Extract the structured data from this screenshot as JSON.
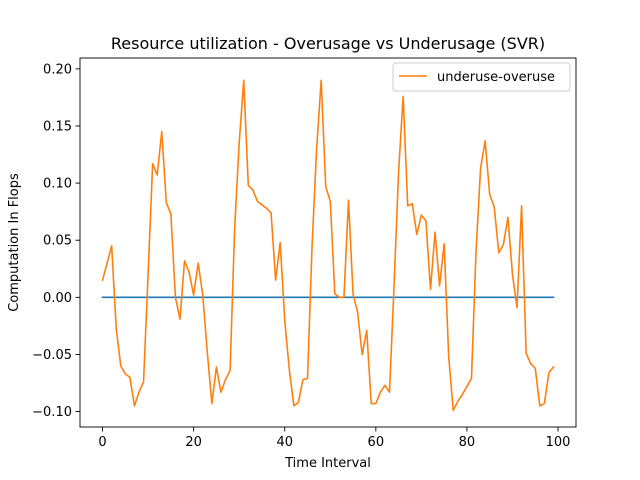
{
  "chart_data": {
    "type": "line",
    "title": "Resource utilization - Overusage vs Underusage (SVR)",
    "xlabel": "Time Interval",
    "ylabel": "Computation In Flops",
    "xlim": [
      -4.95,
      103.95
    ],
    "ylim": [
      -0.1135,
      0.2095
    ],
    "x_ticks": [
      0,
      20,
      40,
      60,
      80,
      100
    ],
    "y_ticks": [
      -0.1,
      -0.05,
      0.0,
      0.05,
      0.1,
      0.15,
      0.2
    ],
    "x_tick_labels": [
      "0",
      "20",
      "40",
      "60",
      "80",
      "100"
    ],
    "y_tick_labels": [
      "−0.10",
      "−0.05",
      "0.00",
      "0.05",
      "0.10",
      "0.15",
      "0.20"
    ],
    "grid": false,
    "legend_position": "top-right",
    "colors": {
      "series0": "#1f77b4",
      "series1": "#ff7f0e"
    },
    "series": [
      {
        "name": "",
        "x": [
          0,
          99
        ],
        "values": [
          0.0,
          0.0
        ]
      },
      {
        "name": "underuse-overuse",
        "x": [
          0,
          1,
          2,
          3,
          4,
          5,
          6,
          7,
          8,
          9,
          10,
          11,
          12,
          13,
          14,
          15,
          16,
          17,
          18,
          19,
          20,
          21,
          22,
          23,
          24,
          25,
          26,
          27,
          28,
          29,
          30,
          31,
          32,
          33,
          34,
          35,
          36,
          37,
          38,
          39,
          40,
          41,
          42,
          43,
          44,
          45,
          46,
          47,
          48,
          49,
          50,
          51,
          52,
          53,
          54,
          55,
          56,
          57,
          58,
          59,
          60,
          61,
          62,
          63,
          64,
          65,
          66,
          67,
          68,
          69,
          70,
          71,
          72,
          73,
          74,
          75,
          76,
          77,
          78,
          79,
          80,
          81,
          82,
          83,
          84,
          85,
          86,
          87,
          88,
          89,
          90,
          91,
          92,
          93,
          94,
          95,
          96,
          97,
          98,
          99
        ],
        "values": [
          0.015,
          0.03,
          0.045,
          -0.027,
          -0.06,
          -0.067,
          -0.07,
          -0.095,
          -0.083,
          -0.074,
          0.02,
          0.117,
          0.107,
          0.145,
          0.083,
          0.073,
          0.0,
          -0.019,
          0.032,
          0.022,
          0.002,
          0.03,
          0.002,
          -0.048,
          -0.093,
          -0.061,
          -0.083,
          -0.072,
          -0.064,
          0.06,
          0.135,
          0.19,
          0.098,
          0.094,
          0.084,
          0.081,
          0.078,
          0.074,
          0.015,
          0.048,
          -0.02,
          -0.063,
          -0.095,
          -0.092,
          -0.072,
          -0.071,
          0.045,
          0.13,
          0.19,
          0.097,
          0.084,
          0.003,
          0.0,
          0.0,
          0.085,
          0.003,
          -0.013,
          -0.05,
          -0.029,
          -0.093,
          -0.093,
          -0.083,
          -0.077,
          -0.083,
          0.01,
          0.11,
          0.176,
          0.08,
          0.082,
          0.055,
          0.072,
          0.067,
          0.007,
          0.057,
          0.01,
          0.047,
          -0.052,
          -0.099,
          -0.091,
          -0.085,
          -0.078,
          -0.071,
          0.04,
          0.113,
          0.137,
          0.09,
          0.079,
          0.039,
          0.046,
          0.07,
          0.02,
          -0.009,
          0.08,
          -0.049,
          -0.058,
          -0.062,
          -0.095,
          -0.093,
          -0.066,
          -0.061
        ]
      }
    ]
  }
}
